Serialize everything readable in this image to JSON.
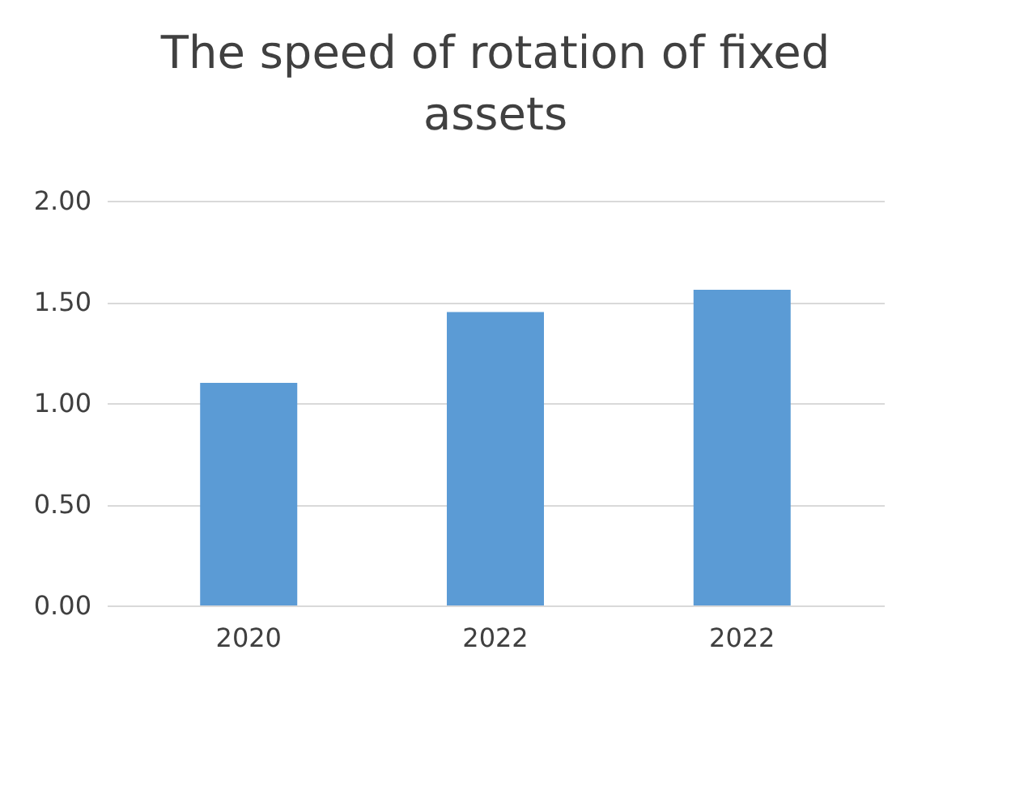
{
  "chart_data": {
    "type": "bar",
    "title": "The speed of rotation of fixed assets",
    "categories": [
      "2020",
      "2022",
      "2022"
    ],
    "values": [
      1.1,
      1.45,
      1.56
    ],
    "color": "#5b9bd5",
    "ylim": [
      0,
      2
    ],
    "yticks": [
      {
        "value": 0,
        "label": "0.00"
      },
      {
        "value": 0.5,
        "label": "0.50"
      },
      {
        "value": 1,
        "label": "1.00"
      },
      {
        "value": 1.5,
        "label": "1.50"
      },
      {
        "value": 2,
        "label": "2.00"
      }
    ],
    "grid": "y"
  }
}
